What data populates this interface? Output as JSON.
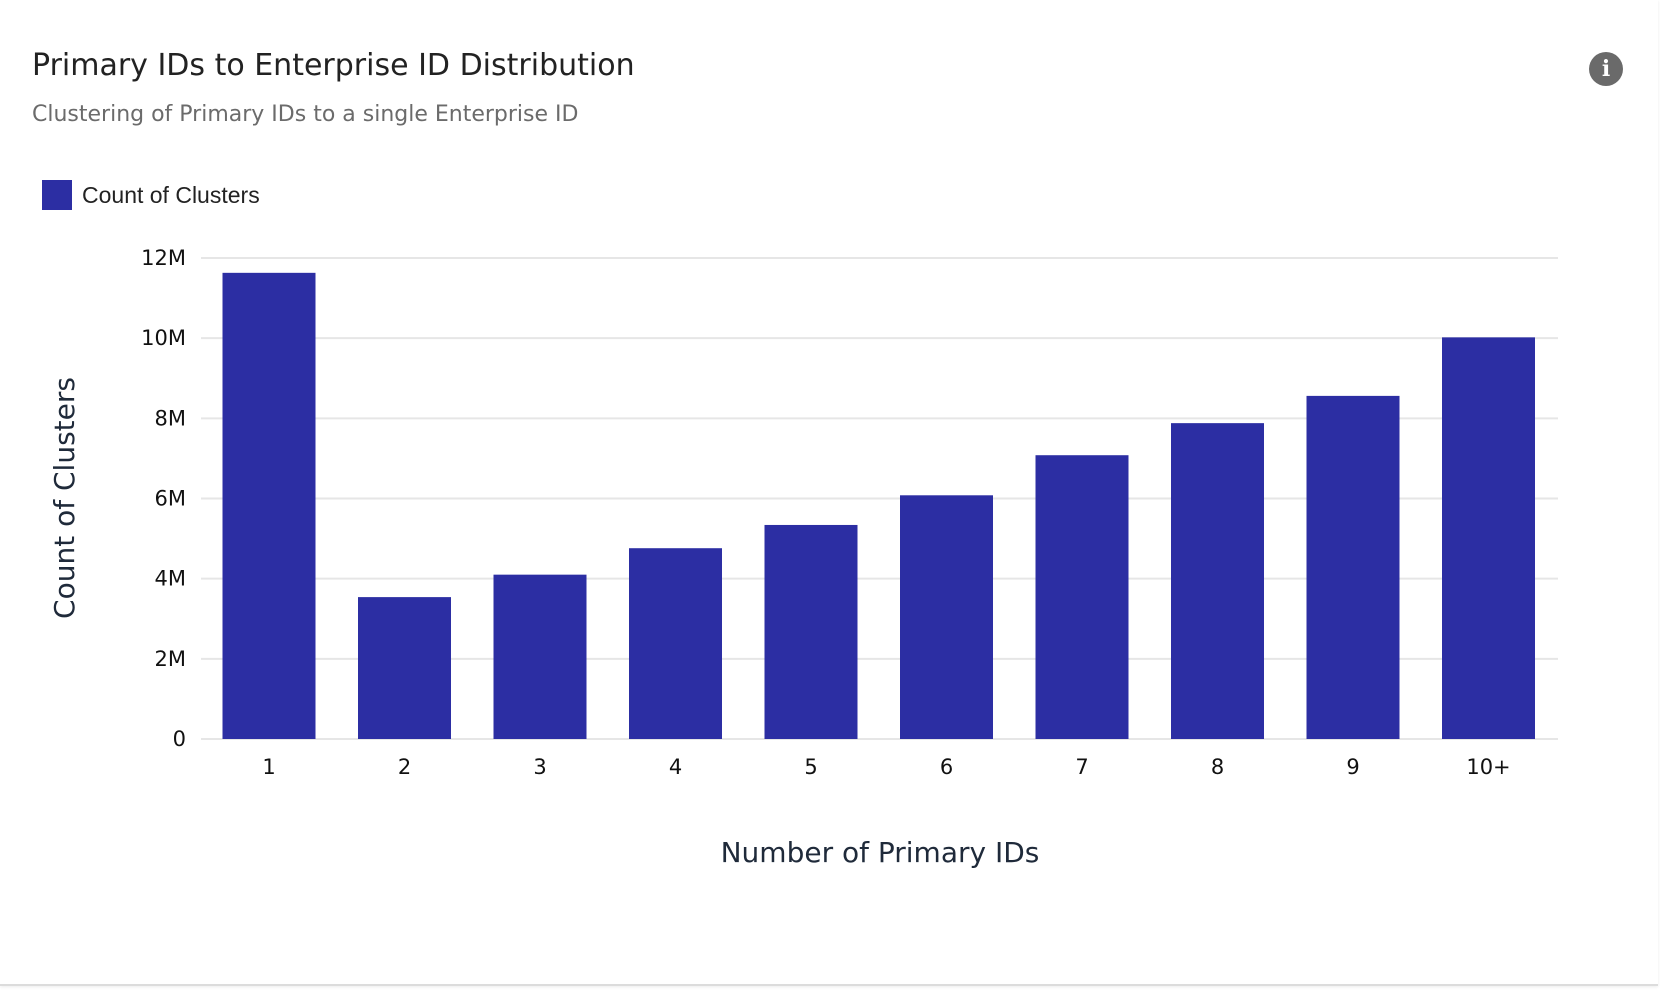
{
  "card": {
    "title": "Primary IDs to Enterprise ID Distribution",
    "subtitle": "Clustering of Primary IDs to a single Enterprise ID",
    "info_icon": "info-icon",
    "info_glyph": "i"
  },
  "chart_data": {
    "type": "bar",
    "categories": [
      "1",
      "2",
      "3",
      "4",
      "5",
      "6",
      "7",
      "8",
      "9",
      "10+"
    ],
    "series": [
      {
        "name": "Count of Clusters",
        "color": "#2c2ea3",
        "values": [
          11630000,
          3540000,
          4100000,
          4760000,
          5340000,
          6080000,
          7080000,
          7880000,
          8560000,
          10020000
        ]
      }
    ],
    "xlabel": "Number of Primary IDs",
    "ylabel": "Count of Clusters",
    "ylim": [
      0,
      12000000
    ],
    "yticks": [
      {
        "value": 0,
        "label": "0"
      },
      {
        "value": 2000000,
        "label": "2M"
      },
      {
        "value": 4000000,
        "label": "4M"
      },
      {
        "value": 6000000,
        "label": "6M"
      },
      {
        "value": 8000000,
        "label": "8M"
      },
      {
        "value": 10000000,
        "label": "10M"
      },
      {
        "value": 12000000,
        "label": "12M"
      }
    ],
    "grid": true,
    "legend_position": "top-left"
  }
}
